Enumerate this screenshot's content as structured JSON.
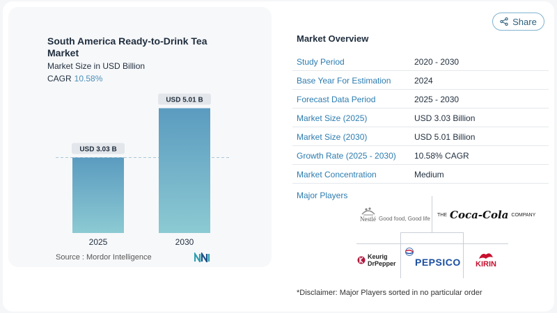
{
  "chart_data": {
    "type": "bar",
    "title": "South America Ready-to-Drink Tea Market",
    "subtitle": "Market Size in USD Billion",
    "cagr_label": "CAGR",
    "cagr_value": "10.58%",
    "categories": [
      "2025",
      "2030"
    ],
    "values": [
      3.03,
      5.01
    ],
    "data_labels": [
      "USD 3.03 B",
      "USD 5.01 B"
    ],
    "ylim": [
      0,
      5.5
    ],
    "bar_color_top": "#5b9bbf",
    "bar_color_bottom": "#8ccad3",
    "reference_line": 3.03
  },
  "source": "Source :  Mordor Intelligence",
  "share": {
    "label": "Share"
  },
  "overview": {
    "title": "Market Overview",
    "rows": [
      {
        "label": "Study Period",
        "value": "2020 - 2030"
      },
      {
        "label": "Base Year For Estimation",
        "value": "2024"
      },
      {
        "label": "Forecast Data Period",
        "value": "2025 - 2030"
      },
      {
        "label": "Market Size (2025)",
        "value": "USD 3.03 Billion"
      },
      {
        "label": "Market Size (2030)",
        "value": "USD 5.01 Billion"
      },
      {
        "label": "Growth Rate (2025 - 2030)",
        "value": "10.58% CAGR"
      },
      {
        "label": "Market Concentration",
        "value": "Medium"
      }
    ]
  },
  "players": {
    "title": "Major Players",
    "nestle": {
      "name": "Nestlé",
      "tagline": "Good food, Good life"
    },
    "coca_cola": {
      "prefix": "THE",
      "name": "Coca-Cola",
      "suffix": "COMPANY"
    },
    "keurig": {
      "line1": "Keurig",
      "line2": "DrPepper"
    },
    "pepsico": {
      "name": "PEPSICO"
    },
    "kirin": {
      "name": "KIRIN"
    }
  },
  "disclaimer": "*Disclaimer: Major Players sorted in no particular order"
}
